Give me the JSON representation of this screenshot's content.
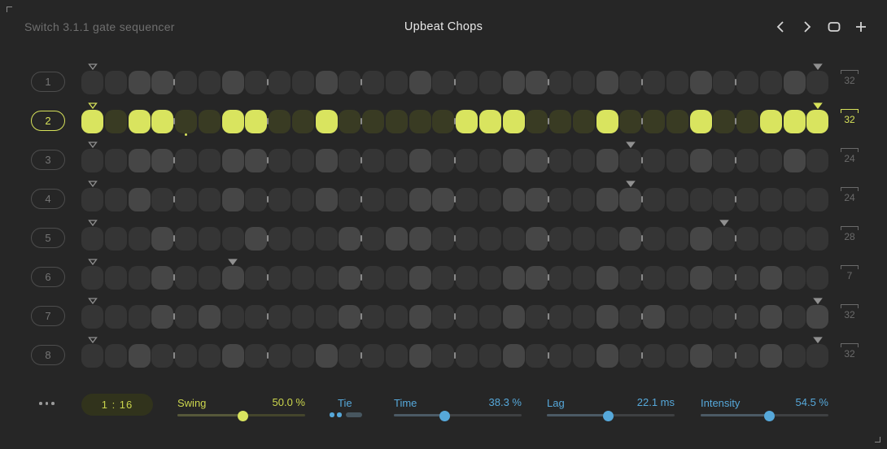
{
  "window": {
    "app_title": "Switch 3.1.1 gate sequencer",
    "preset_name": "Upbeat Chops"
  },
  "nav": {
    "prev_icon": "chevron-left",
    "next_icon": "chevron-right",
    "box_icon": "rounded-square",
    "add_icon": "plus"
  },
  "sequencer": {
    "steps_per_row": 32,
    "beat_group": 4,
    "rows": [
      {
        "label": "1",
        "length": 32,
        "selected": false,
        "active_steps": [
          3,
          4,
          7,
          11,
          15,
          19,
          20,
          23,
          27,
          31
        ]
      },
      {
        "label": "2",
        "length": 32,
        "selected": true,
        "active_steps": [
          1,
          3,
          4,
          7,
          8,
          11,
          17,
          18,
          19,
          23,
          27,
          30,
          31,
          32
        ],
        "sub_dot_step": 5
      },
      {
        "label": "3",
        "length": 24,
        "selected": false,
        "active_steps": [
          3,
          4,
          7,
          8,
          11,
          15,
          19,
          20,
          23,
          27,
          31
        ]
      },
      {
        "label": "4",
        "length": 24,
        "selected": false,
        "active_steps": [
          3,
          7,
          11,
          15,
          16,
          19,
          20,
          23,
          24
        ]
      },
      {
        "label": "5",
        "length": 28,
        "selected": false,
        "active_steps": [
          4,
          8,
          12,
          14,
          15,
          20,
          24,
          27
        ]
      },
      {
        "label": "6",
        "length": 7,
        "selected": false,
        "active_steps": [
          4,
          7,
          12,
          15,
          19,
          20,
          23,
          27,
          30
        ]
      },
      {
        "label": "7",
        "length": 32,
        "selected": false,
        "active_steps": [
          4,
          6,
          12,
          15,
          19,
          23,
          25,
          30,
          32
        ]
      },
      {
        "label": "8",
        "length": 32,
        "selected": false,
        "active_steps": [
          3,
          7,
          11,
          15,
          19,
          23,
          27,
          30
        ]
      }
    ]
  },
  "footer": {
    "menu_icon": "three-dots",
    "position_display": "1 : 16",
    "tie": {
      "label": "Tie",
      "dots_on": 2
    },
    "controls": [
      {
        "name": "swing",
        "label": "Swing",
        "value": "50.0 %",
        "percent": 51,
        "color": "yellow"
      },
      {
        "name": "time",
        "label": "Time",
        "value": "38.3 %",
        "percent": 40,
        "color": "blue"
      },
      {
        "name": "lag",
        "label": "Lag",
        "value": "22.1 ms",
        "percent": 48,
        "color": "blue"
      },
      {
        "name": "intensity",
        "label": "Intensity",
        "value": "54.5 %",
        "percent": 54,
        "color": "blue"
      }
    ]
  },
  "colors": {
    "bg": "#262626",
    "step-off": "#353535",
    "step-on": "#464646",
    "sel-off": "#393b23",
    "sel-on": "#d9e45f",
    "yellow": "#d7e25a",
    "blue": "#56a8da"
  }
}
